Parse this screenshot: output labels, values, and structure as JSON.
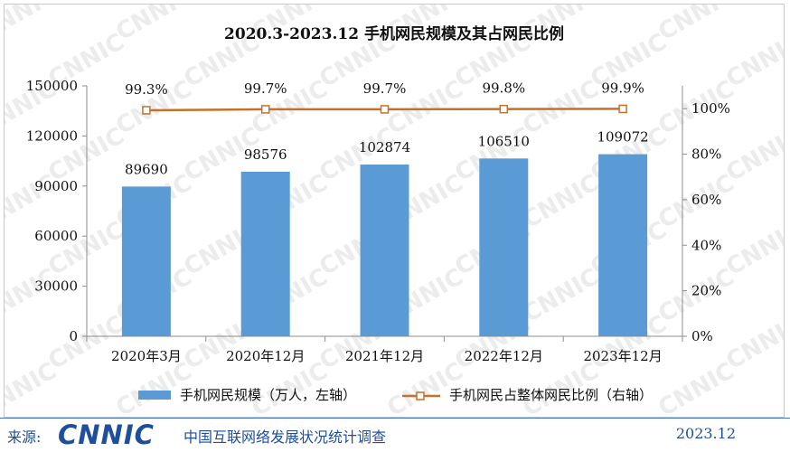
{
  "chart_data": {
    "type": "bar",
    "title": "2020.3-2023.12 手机网民规模及其占网民比例",
    "categories": [
      "2020年3月",
      "2020年12月",
      "2021年12月",
      "2022年12月",
      "2023年12月"
    ],
    "series": [
      {
        "name": "手机网民规模（万人，左轴）",
        "type": "bar",
        "axis": "left",
        "values": [
          89690,
          98576,
          102874,
          106510,
          109072
        ],
        "labels": [
          "89690",
          "98576",
          "102874",
          "106510",
          "109072"
        ],
        "color": "#5b9bd5"
      },
      {
        "name": "手机网民占整体网民比例（右轴）",
        "type": "line",
        "axis": "right",
        "values": [
          99.3,
          99.7,
          99.7,
          99.8,
          99.9
        ],
        "labels": [
          "99.3%",
          "99.7%",
          "99.7%",
          "99.8%",
          "99.9%"
        ],
        "color": "#c5712b"
      }
    ],
    "y_left": {
      "min": 0,
      "max": 150000,
      "ticks": [
        "0",
        "30000",
        "60000",
        "90000",
        "120000",
        "150000"
      ]
    },
    "y_right": {
      "min": 0,
      "max": 110,
      "ticks": [
        "0%",
        "20%",
        "40%",
        "60%",
        "80%",
        "100%"
      ]
    },
    "grid": false,
    "legend_position": "bottom"
  },
  "watermark_text": "CNNIC",
  "footer": {
    "source_label": "来源:",
    "logo_text": "CNNIC",
    "org": "中国互联网络发展状况统计调查",
    "date": "2023.12"
  }
}
